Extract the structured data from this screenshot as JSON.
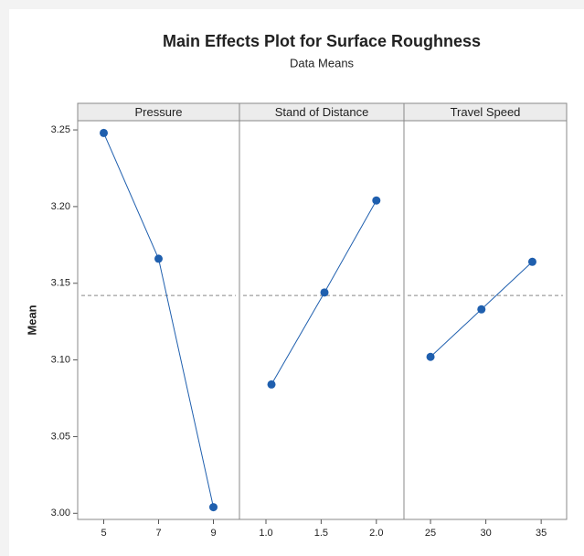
{
  "chart_data": {
    "type": "line",
    "title": "Main Effects Plot for Surface Roughness",
    "subtitle": "Data Means",
    "ylabel": "Mean",
    "ylim": [
      2.996,
      3.256
    ],
    "yticks": [
      {
        "value": 3,
        "label": "3.00"
      },
      3.05,
      {
        "value": 3.1,
        "label": "3.10"
      },
      3.15,
      {
        "value": 3.2,
        "label": "3.20"
      },
      3.25
    ],
    "reference_line": 3.142,
    "color": "#1f5fae",
    "panels": [
      {
        "name": "Pressure",
        "x": [
          5,
          7,
          9
        ],
        "values": [
          3.248,
          3.166,
          3.004
        ],
        "xlim": [
          4.05,
          9.95
        ],
        "xticks": [
          5,
          7,
          9
        ]
      },
      {
        "name": "Stand of Distance",
        "x": [
          1.05,
          1.53,
          2.0
        ],
        "values": [
          3.084,
          3.144,
          3.204
        ],
        "xlim": [
          0.76,
          2.25
        ],
        "xticks": [
          {
            "value": 1,
            "label": "1.0"
          },
          1.5,
          {
            "value": 2,
            "label": "2.0"
          }
        ]
      },
      {
        "name": "Travel Speed",
        "x": [
          25,
          29.6,
          34.2
        ],
        "values": [
          3.102,
          3.133,
          3.164
        ],
        "xlim": [
          22.6,
          37.3
        ],
        "xticks": [
          25,
          30,
          35
        ]
      }
    ]
  }
}
